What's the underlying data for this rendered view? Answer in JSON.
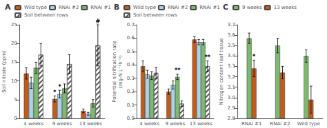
{
  "chart_data": [
    {
      "type": "bar",
      "title": "A",
      "ylabel": "Soil nitrate (ppm)",
      "categories": [
        "4 weeks",
        "9 weeks",
        "13 weeks"
      ],
      "series": [
        {
          "name": "Wild type",
          "color": "#c85a17",
          "values": [
            12.0,
            5.2,
            2.0
          ],
          "errors": [
            1.5,
            0.8,
            0.5
          ]
        },
        {
          "name": "RNAi #2",
          "color": "#a8d4e8",
          "values": [
            9.5,
            6.5,
            1.2
          ],
          "errors": [
            1.5,
            1.0,
            0.4
          ]
        },
        {
          "name": "RNAi #1",
          "color": "#7dba6e",
          "values": [
            13.5,
            8.0,
            4.0
          ],
          "errors": [
            1.5,
            1.2,
            1.0
          ]
        },
        {
          "name": "Soil between rows",
          "color": "#ffffff",
          "values": [
            17.0,
            14.5,
            19.5
          ],
          "errors": [
            3.0,
            2.5,
            5.5
          ]
        }
      ],
      "ylim": [
        0,
        25
      ],
      "yticks": [
        0,
        5,
        10,
        15,
        20,
        25
      ],
      "grid": false,
      "legend": "upper left",
      "annotations": [
        {
          "text": "*",
          "category": "9 weeks",
          "series": "Wild type"
        },
        {
          "text": "*",
          "category": "9 weeks",
          "series": "RNAi #2"
        },
        {
          "text": "#",
          "category": "13 weeks",
          "series": "Soil between rows"
        }
      ]
    },
    {
      "type": "bar",
      "title": "B",
      "ylabel": "Potential nitrification rate\n(mg-N L⁻¹h⁻¹)",
      "categories": [
        "4 weeks",
        "9 weeks",
        "13 weeks"
      ],
      "series": [
        {
          "name": "Wild type",
          "color": "#c85a17",
          "values": [
            0.39,
            0.2,
            0.59
          ],
          "errors": [
            0.04,
            0.02,
            0.02
          ]
        },
        {
          "name": "RNAi #2",
          "color": "#a8d4e8",
          "values": [
            0.33,
            0.25,
            0.57
          ],
          "errors": [
            0.03,
            0.03,
            0.02
          ]
        },
        {
          "name": "RNAi #1",
          "color": "#7dba6e",
          "values": [
            0.32,
            0.31,
            0.57
          ],
          "errors": [
            0.03,
            0.02,
            0.02
          ]
        },
        {
          "name": "Soil between rows",
          "color": "#ffffff",
          "values": [
            0.34,
            0.11,
            0.39
          ],
          "errors": [
            0.04,
            0.02,
            0.04
          ]
        }
      ],
      "ylim": [
        0,
        0.7
      ],
      "yticks": [
        {
          "value": 0,
          "label": "0.0"
        },
        0.1,
        0.2,
        0.3,
        0.4,
        0.5,
        0.6,
        0.7
      ],
      "grid": false,
      "legend": "upper left",
      "annotations": [
        {
          "text": "**",
          "category": "9 weeks",
          "series": "RNAi #1"
        },
        {
          "text": "**",
          "category": "13 weeks",
          "series": "Soil between rows"
        }
      ]
    },
    {
      "type": "bar",
      "title": "C",
      "ylabel": "Nitrogen content leaf tissue",
      "categories": [
        "RNAi #1",
        "RNAi #2",
        "Wild type"
      ],
      "series": [
        {
          "name": "9 weeks",
          "color": "#7dba6e",
          "values": [
            3.57,
            3.5,
            3.4
          ],
          "errors": [
            0.05,
            0.07,
            0.06
          ]
        },
        {
          "name": "13 weeks",
          "color": "#c85a17",
          "values": [
            3.28,
            3.24,
            2.98
          ],
          "errors": [
            0.08,
            0.06,
            0.13
          ]
        }
      ],
      "ylim": [
        2.8,
        3.7
      ],
      "yticks": [
        2.8,
        2.9,
        {
          "value": 3,
          "label": "3.0"
        },
        3.1,
        3.2,
        3.3,
        3.4,
        3.5,
        3.6,
        3.7
      ],
      "grid": false,
      "legend": "upper left",
      "annotations": [
        {
          "text": "*",
          "category": "RNAi #1",
          "series": "13 weeks"
        }
      ]
    }
  ]
}
